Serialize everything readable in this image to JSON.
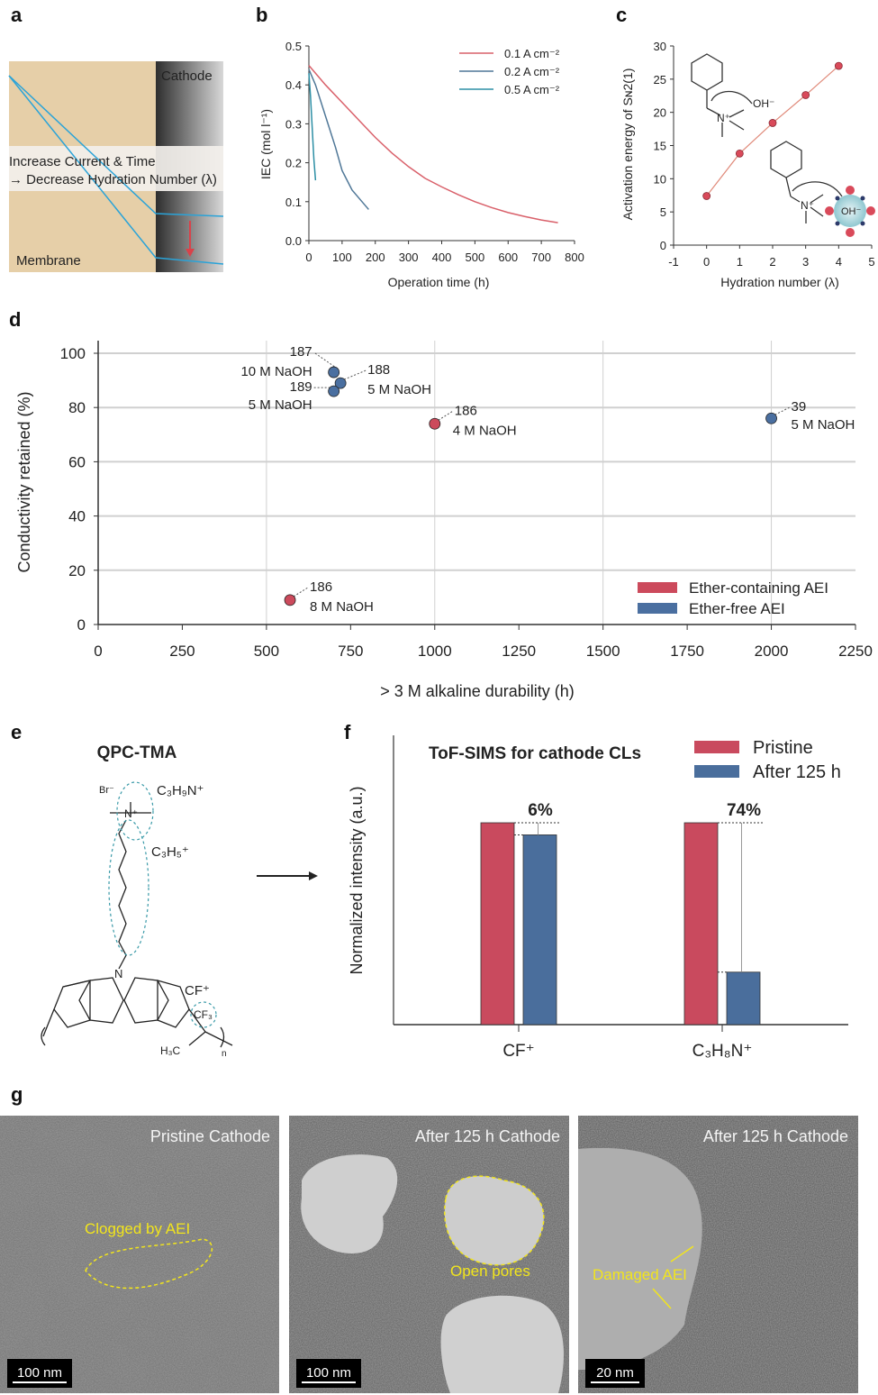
{
  "panel_labels": {
    "a": "a",
    "b": "b",
    "c": "c",
    "d": "d",
    "e": "e",
    "f": "f",
    "g": "g"
  },
  "panel_a": {
    "cathode_label": "Cathode",
    "membrane_label": "Membrane",
    "caption_line1": "Increase Current & Time",
    "caption_line2": "→ Decrease Hydration Number (λ)",
    "colors": {
      "membrane": "#e6cfa8",
      "line": "#2aa3d8",
      "arrow": "#d9424a"
    }
  },
  "chart_data": [
    {
      "id": "b",
      "type": "line",
      "xlabel": "Operation time (h)",
      "ylabel": "IEC (mol l⁻¹)",
      "xlim": [
        0,
        800
      ],
      "ylim": [
        0,
        0.5
      ],
      "xticks": [
        0,
        100,
        200,
        300,
        400,
        500,
        600,
        700,
        800
      ],
      "yticks": [
        "0.0",
        "0.1",
        "0.2",
        "0.3",
        "0.4",
        "0.5"
      ],
      "legend_position": "top-right",
      "grid": false,
      "series": [
        {
          "name": "0.1 A cm⁻²",
          "color": "#d9606a",
          "x": [
            0,
            50,
            100,
            150,
            200,
            250,
            300,
            350,
            400,
            450,
            500,
            550,
            600,
            650,
            700,
            750
          ],
          "y": [
            0.45,
            0.4,
            0.355,
            0.31,
            0.265,
            0.225,
            0.19,
            0.16,
            0.138,
            0.118,
            0.1,
            0.085,
            0.072,
            0.062,
            0.053,
            0.046
          ]
        },
        {
          "name": "0.2 A cm⁻²",
          "color": "#4f7797",
          "x": [
            0,
            20,
            50,
            80,
            100,
            130,
            160,
            180
          ],
          "y": [
            0.44,
            0.4,
            0.32,
            0.24,
            0.18,
            0.13,
            0.1,
            0.08
          ]
        },
        {
          "name": "0.5 A cm⁻²",
          "color": "#2d8fa5",
          "x": [
            0,
            5,
            10,
            15,
            20
          ],
          "y": [
            0.43,
            0.37,
            0.29,
            0.21,
            0.155
          ]
        }
      ]
    },
    {
      "id": "c",
      "type": "scatter",
      "xlabel": "Hydration number (λ)",
      "ylabel": "Activation energy of Sɴ2(1)",
      "xlim": [
        -1,
        5
      ],
      "ylim": [
        0,
        30
      ],
      "xticks": [
        -1,
        0,
        1,
        2,
        3,
        4,
        5
      ],
      "yticks": [
        0,
        5,
        10,
        15,
        20,
        25,
        30
      ],
      "color": "#d94a5a",
      "x": [
        0,
        1,
        2,
        3,
        4
      ],
      "y": [
        7.4,
        13.8,
        18.4,
        22.6,
        27.0
      ],
      "annotations": {
        "oh_top": "OH⁻",
        "n_top": "N⁺",
        "n_bottom": "N⁺",
        "oh_cluster": "OH⁻"
      }
    },
    {
      "id": "d",
      "type": "scatter",
      "xlabel": "> 3 M alkaline durability (h)",
      "ylabel": "Conductivity retained (%)",
      "xlim": [
        0,
        2250
      ],
      "ylim": [
        0,
        100
      ],
      "xticks": [
        0,
        250,
        500,
        750,
        1000,
        1250,
        1500,
        1750,
        2000,
        2250
      ],
      "yticks": [
        0,
        20,
        40,
        60,
        80,
        100
      ],
      "grid": true,
      "legend_position": "bottom-right",
      "series": [
        {
          "name": "Ether-containing AEI",
          "color": "#cc4a5c",
          "points": [
            {
              "x": 1000,
              "y": 74,
              "ref": "186",
              "condition": "4 M NaOH"
            },
            {
              "x": 570,
              "y": 9,
              "ref": "186",
              "condition": "8 M NaOH"
            }
          ]
        },
        {
          "name": "Ether-free AEI",
          "color": "#4a6fa0",
          "points": [
            {
              "x": 700,
              "y": 93,
              "ref": "187",
              "condition": "10 M NaOH"
            },
            {
              "x": 720,
              "y": 89,
              "ref": "188",
              "condition": "5 M NaOH"
            },
            {
              "x": 700,
              "y": 86,
              "ref": "189",
              "condition": "5 M NaOH"
            },
            {
              "x": 2000,
              "y": 76,
              "ref": "39",
              "condition": "5 M NaOH"
            }
          ]
        }
      ]
    },
    {
      "id": "f",
      "type": "bar",
      "title": "ToF-SIMS for cathode CLs",
      "ylabel": "Normalized intensity (a.u.)",
      "categories": [
        "CF⁺",
        "C₃H₈N⁺"
      ],
      "series": [
        {
          "name": "Pristine",
          "color": "#c94a5e",
          "values": [
            1.0,
            1.0
          ]
        },
        {
          "name": "After 125 h",
          "color": "#4a6e9c",
          "values": [
            0.94,
            0.26
          ]
        }
      ],
      "data_labels": [
        "6%",
        "74%"
      ],
      "legend_position": "top-right"
    }
  ],
  "panel_e": {
    "title": "QPC-TMA",
    "br": "Br⁻",
    "n_plus": "N⁺",
    "n_ring": "N",
    "frag1": "C₃H₉N⁺",
    "frag2": "C₃H₅⁺",
    "frag3": "CF⁺",
    "cf3": "CF₃",
    "h3c": "H₃C",
    "n_sub": "n",
    "fragment_color": "#3a9aa8"
  },
  "panel_g": {
    "images": [
      {
        "title": "Pristine Cathode",
        "annotation": "Clogged by AEI",
        "scale_bar": "100 nm"
      },
      {
        "title": "After 125 h Cathode",
        "annotation": "Open pores",
        "scale_bar": "100 nm"
      },
      {
        "title": "After 125 h Cathode",
        "annotation": "Damaged AEI",
        "scale_bar": "20 nm"
      }
    ]
  }
}
